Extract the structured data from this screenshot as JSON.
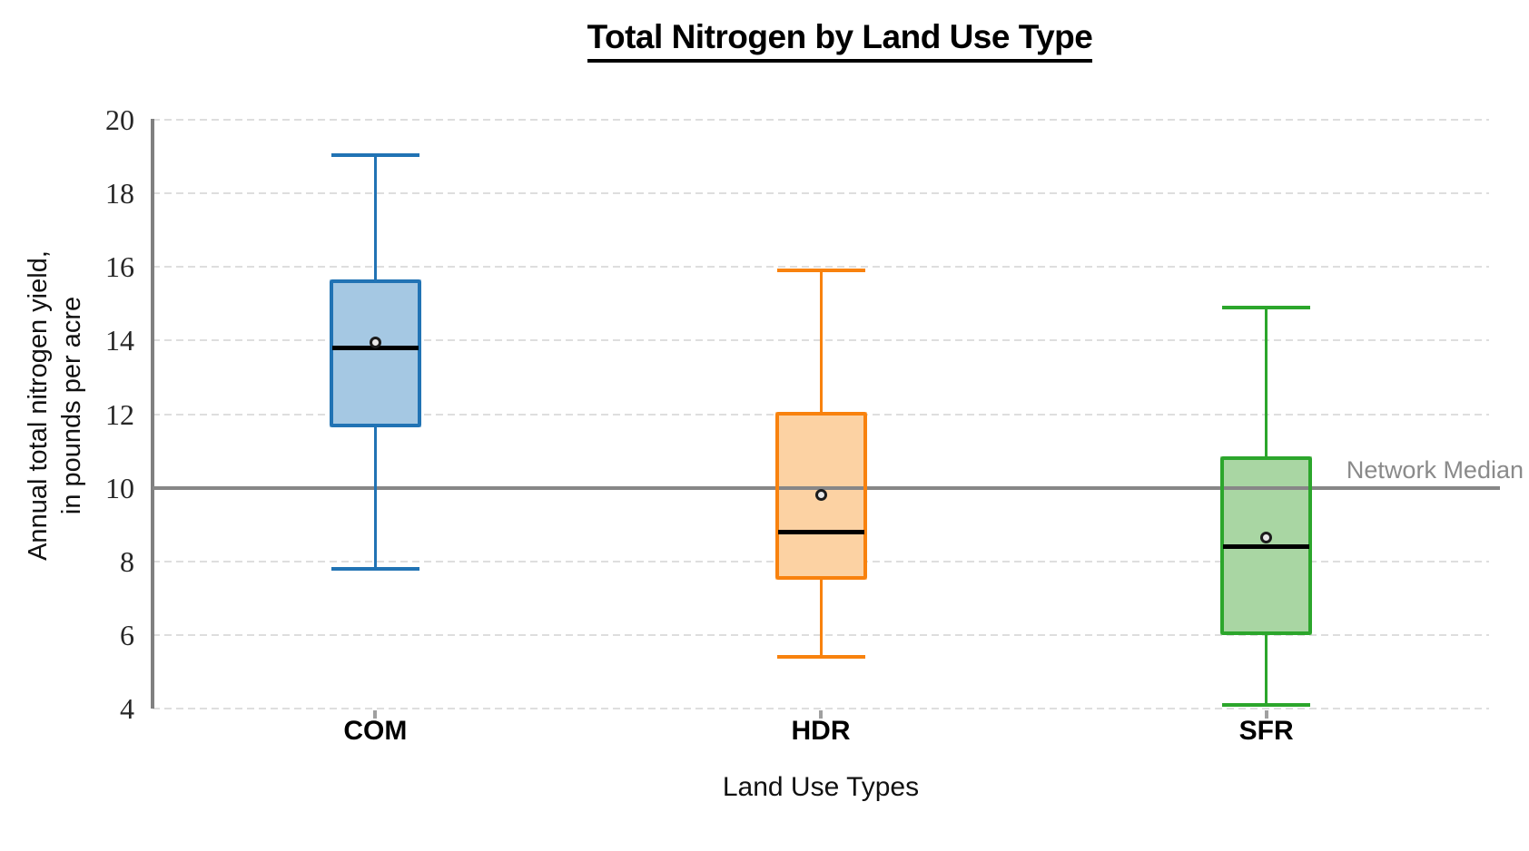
{
  "chart": {
    "title": "Total Nitrogen by Land Use Type",
    "xlabel": "Land Use Types",
    "ylabel_lines": [
      "Annual total nitrogen yield,",
      "in pounds per acre"
    ],
    "reference_label": "Network Median"
  },
  "chart_data": {
    "type": "boxplot",
    "title": "Total Nitrogen by Land Use Type",
    "xlabel": "Land Use Types",
    "ylabel": "Annual total nitrogen yield, in pounds per acre",
    "ylim": [
      4,
      20
    ],
    "yticks": [
      20,
      18,
      16,
      14,
      12,
      10,
      8,
      6,
      4
    ],
    "grid": "horizontal-dashed",
    "legend": "none",
    "reference_line": {
      "label": "Network Median",
      "value": 10,
      "color": "#878787"
    },
    "categories": [
      "COM",
      "HDR",
      "SFR"
    ],
    "series": [
      {
        "name": "COM",
        "whisker_low": 7.8,
        "q1": 11.65,
        "median": 13.8,
        "mean": 13.95,
        "q3": 15.65,
        "whisker_high": 19.05,
        "fill": "#a5c8e3",
        "stroke": "#2173b4"
      },
      {
        "name": "HDR",
        "whisker_low": 5.4,
        "q1": 7.5,
        "median": 8.8,
        "mean": 9.8,
        "q3": 12.05,
        "whisker_high": 15.9,
        "fill": "#fcd2a3",
        "stroke": "#f8820e"
      },
      {
        "name": "SFR",
        "whisker_low": 4.1,
        "q1": 6.0,
        "median": 8.4,
        "mean": 8.65,
        "q3": 10.85,
        "whisker_high": 14.9,
        "fill": "#a9d6a3",
        "stroke": "#2ca62c"
      }
    ],
    "marker_styles": {
      "median_color": "#000000",
      "mean_marker": "circle",
      "mean_fill": "#e9e9e9",
      "mean_stroke": "#1c1c1c"
    }
  }
}
